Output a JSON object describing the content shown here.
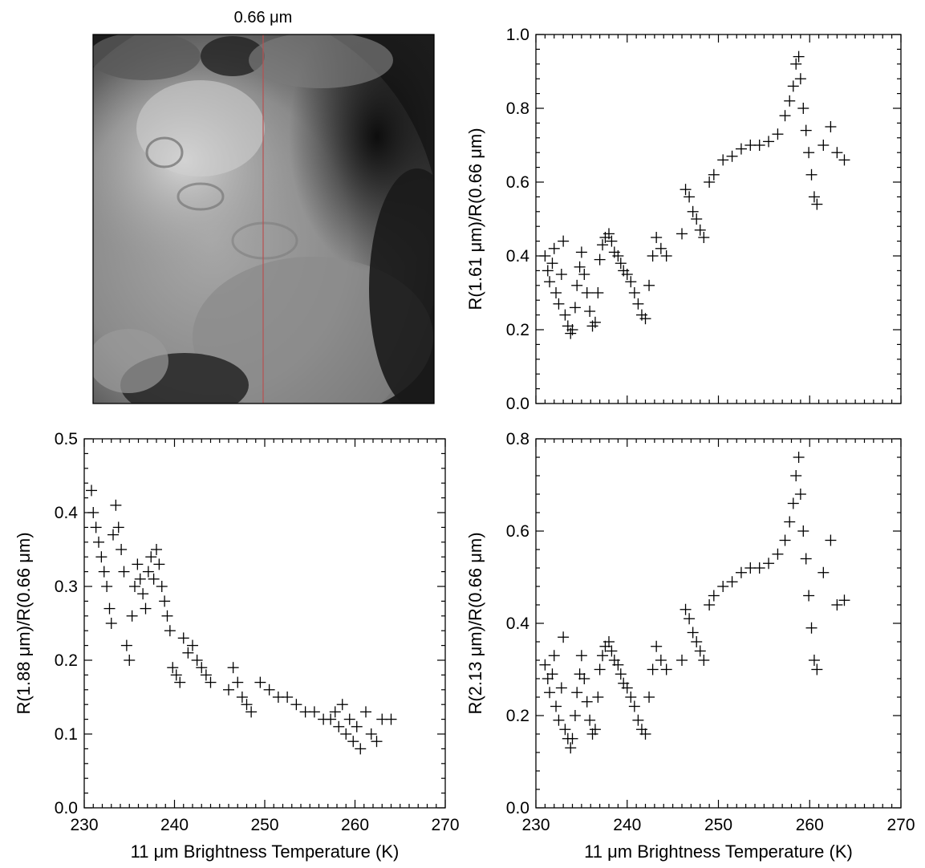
{
  "image_panel": {
    "title": "0.66 μm",
    "description_hidden": ""
  },
  "chart_data": [
    {
      "type": "scatter",
      "panel": "top-right",
      "xlabel": "",
      "ylabel": "R(1.61 μm)/R(0.66 μm)",
      "xlim": [
        230,
        270
      ],
      "ylim": [
        0.0,
        1.0
      ],
      "x_ticks": [],
      "y_ticks": [
        "0.0",
        "0.2",
        "0.4",
        "0.6",
        "0.8",
        "1.0"
      ],
      "y_tick_values": [
        0.0,
        0.2,
        0.4,
        0.6,
        0.8,
        1.0
      ],
      "marker": "+",
      "points": [
        [
          231.0,
          0.4
        ],
        [
          231.3,
          0.36
        ],
        [
          231.5,
          0.33
        ],
        [
          231.8,
          0.38
        ],
        [
          232.0,
          0.42
        ],
        [
          232.2,
          0.3
        ],
        [
          232.5,
          0.27
        ],
        [
          232.8,
          0.35
        ],
        [
          233.0,
          0.44
        ],
        [
          233.2,
          0.24
        ],
        [
          233.5,
          0.21
        ],
        [
          233.8,
          0.19
        ],
        [
          234.0,
          0.2
        ],
        [
          234.3,
          0.26
        ],
        [
          234.5,
          0.32
        ],
        [
          234.8,
          0.37
        ],
        [
          235.0,
          0.41
        ],
        [
          235.3,
          0.35
        ],
        [
          235.6,
          0.3
        ],
        [
          235.9,
          0.25
        ],
        [
          236.2,
          0.21
        ],
        [
          236.5,
          0.22
        ],
        [
          236.8,
          0.3
        ],
        [
          237.0,
          0.39
        ],
        [
          237.3,
          0.43
        ],
        [
          237.6,
          0.45
        ],
        [
          238.0,
          0.46
        ],
        [
          238.3,
          0.44
        ],
        [
          238.6,
          0.41
        ],
        [
          239.0,
          0.4
        ],
        [
          239.3,
          0.38
        ],
        [
          239.6,
          0.36
        ],
        [
          240.0,
          0.35
        ],
        [
          240.4,
          0.33
        ],
        [
          240.8,
          0.3
        ],
        [
          241.2,
          0.27
        ],
        [
          241.6,
          0.24
        ],
        [
          242.0,
          0.23
        ],
        [
          242.4,
          0.32
        ],
        [
          242.8,
          0.4
        ],
        [
          243.2,
          0.45
        ],
        [
          243.7,
          0.42
        ],
        [
          244.3,
          0.4
        ],
        [
          246.0,
          0.46
        ],
        [
          246.4,
          0.58
        ],
        [
          246.8,
          0.56
        ],
        [
          247.2,
          0.52
        ],
        [
          247.6,
          0.5
        ],
        [
          248.0,
          0.47
        ],
        [
          248.4,
          0.45
        ],
        [
          249.0,
          0.6
        ],
        [
          249.5,
          0.62
        ],
        [
          250.5,
          0.66
        ],
        [
          251.5,
          0.67
        ],
        [
          252.5,
          0.69
        ],
        [
          253.5,
          0.7
        ],
        [
          254.5,
          0.7
        ],
        [
          255.5,
          0.71
        ],
        [
          256.5,
          0.73
        ],
        [
          257.3,
          0.78
        ],
        [
          257.8,
          0.82
        ],
        [
          258.2,
          0.86
        ],
        [
          258.5,
          0.92
        ],
        [
          258.8,
          0.94
        ],
        [
          259.0,
          0.88
        ],
        [
          259.3,
          0.8
        ],
        [
          259.6,
          0.74
        ],
        [
          259.9,
          0.68
        ],
        [
          260.2,
          0.62
        ],
        [
          260.5,
          0.56
        ],
        [
          260.8,
          0.54
        ],
        [
          261.5,
          0.7
        ],
        [
          262.3,
          0.75
        ],
        [
          263.0,
          0.68
        ],
        [
          263.8,
          0.66
        ]
      ]
    },
    {
      "type": "scatter",
      "panel": "bottom-left",
      "xlabel": "11 μm Brightness Temperature (K)",
      "ylabel": "R(1.88 μm)/R(0.66 μm)",
      "xlim": [
        230,
        270
      ],
      "ylim": [
        0.0,
        0.5
      ],
      "x_ticks": [
        "230",
        "240",
        "250",
        "260",
        "270"
      ],
      "x_tick_values": [
        230,
        240,
        250,
        260,
        270
      ],
      "y_ticks": [
        "0.0",
        "0.1",
        "0.2",
        "0.3",
        "0.4",
        "0.5"
      ],
      "y_tick_values": [
        0.0,
        0.1,
        0.2,
        0.3,
        0.4,
        0.5
      ],
      "marker": "+",
      "points": [
        [
          230.8,
          0.43
        ],
        [
          231.0,
          0.4
        ],
        [
          231.3,
          0.38
        ],
        [
          231.6,
          0.36
        ],
        [
          231.9,
          0.34
        ],
        [
          232.2,
          0.32
        ],
        [
          232.5,
          0.3
        ],
        [
          232.8,
          0.27
        ],
        [
          233.0,
          0.25
        ],
        [
          233.2,
          0.37
        ],
        [
          233.5,
          0.41
        ],
        [
          233.8,
          0.38
        ],
        [
          234.1,
          0.35
        ],
        [
          234.4,
          0.32
        ],
        [
          234.7,
          0.22
        ],
        [
          235.0,
          0.2
        ],
        [
          235.3,
          0.26
        ],
        [
          235.6,
          0.3
        ],
        [
          235.9,
          0.33
        ],
        [
          236.2,
          0.31
        ],
        [
          236.5,
          0.29
        ],
        [
          236.8,
          0.27
        ],
        [
          237.1,
          0.32
        ],
        [
          237.4,
          0.34
        ],
        [
          237.7,
          0.31
        ],
        [
          238.0,
          0.35
        ],
        [
          238.3,
          0.33
        ],
        [
          238.6,
          0.3
        ],
        [
          238.9,
          0.28
        ],
        [
          239.2,
          0.26
        ],
        [
          239.5,
          0.24
        ],
        [
          239.8,
          0.19
        ],
        [
          240.2,
          0.18
        ],
        [
          240.6,
          0.17
        ],
        [
          241.0,
          0.23
        ],
        [
          241.5,
          0.21
        ],
        [
          242.0,
          0.22
        ],
        [
          242.5,
          0.2
        ],
        [
          243.0,
          0.19
        ],
        [
          243.5,
          0.18
        ],
        [
          244.0,
          0.17
        ],
        [
          246.0,
          0.16
        ],
        [
          246.5,
          0.19
        ],
        [
          247.0,
          0.17
        ],
        [
          247.5,
          0.15
        ],
        [
          248.0,
          0.14
        ],
        [
          248.5,
          0.13
        ],
        [
          249.5,
          0.17
        ],
        [
          250.5,
          0.16
        ],
        [
          251.5,
          0.15
        ],
        [
          252.5,
          0.15
        ],
        [
          253.5,
          0.14
        ],
        [
          254.5,
          0.13
        ],
        [
          255.5,
          0.13
        ],
        [
          256.5,
          0.12
        ],
        [
          257.3,
          0.12
        ],
        [
          257.8,
          0.13
        ],
        [
          258.2,
          0.11
        ],
        [
          258.6,
          0.14
        ],
        [
          259.0,
          0.1
        ],
        [
          259.4,
          0.12
        ],
        [
          259.8,
          0.09
        ],
        [
          260.2,
          0.11
        ],
        [
          260.6,
          0.08
        ],
        [
          261.2,
          0.13
        ],
        [
          261.8,
          0.1
        ],
        [
          262.4,
          0.09
        ],
        [
          263.0,
          0.12
        ],
        [
          264.0,
          0.12
        ]
      ]
    },
    {
      "type": "scatter",
      "panel": "bottom-right",
      "xlabel": "11 μm Brightness Temperature (K)",
      "ylabel": "R(2.13 μm)/R(0.66 μm)",
      "xlim": [
        230,
        270
      ],
      "ylim": [
        0.0,
        0.8
      ],
      "x_ticks": [
        "230",
        "240",
        "250",
        "260",
        "270"
      ],
      "x_tick_values": [
        230,
        240,
        250,
        260,
        270
      ],
      "y_ticks": [
        "0.0",
        "0.2",
        "0.4",
        "0.6",
        "0.8"
      ],
      "y_tick_values": [
        0.0,
        0.2,
        0.4,
        0.6,
        0.8
      ],
      "marker": "+",
      "points": [
        [
          231.0,
          0.31
        ],
        [
          231.3,
          0.28
        ],
        [
          231.5,
          0.25
        ],
        [
          231.8,
          0.29
        ],
        [
          232.0,
          0.33
        ],
        [
          232.2,
          0.22
        ],
        [
          232.5,
          0.19
        ],
        [
          232.8,
          0.26
        ],
        [
          233.0,
          0.37
        ],
        [
          233.2,
          0.17
        ],
        [
          233.5,
          0.15
        ],
        [
          233.8,
          0.13
        ],
        [
          234.0,
          0.15
        ],
        [
          234.3,
          0.2
        ],
        [
          234.5,
          0.25
        ],
        [
          234.8,
          0.29
        ],
        [
          235.0,
          0.33
        ],
        [
          235.3,
          0.28
        ],
        [
          235.6,
          0.23
        ],
        [
          235.9,
          0.19
        ],
        [
          236.2,
          0.16
        ],
        [
          236.5,
          0.17
        ],
        [
          236.8,
          0.24
        ],
        [
          237.0,
          0.3
        ],
        [
          237.3,
          0.33
        ],
        [
          237.6,
          0.35
        ],
        [
          238.0,
          0.36
        ],
        [
          238.3,
          0.34
        ],
        [
          238.6,
          0.32
        ],
        [
          239.0,
          0.31
        ],
        [
          239.3,
          0.29
        ],
        [
          239.6,
          0.27
        ],
        [
          240.0,
          0.26
        ],
        [
          240.4,
          0.24
        ],
        [
          240.8,
          0.22
        ],
        [
          241.2,
          0.19
        ],
        [
          241.6,
          0.17
        ],
        [
          242.0,
          0.16
        ],
        [
          242.4,
          0.24
        ],
        [
          242.8,
          0.3
        ],
        [
          243.2,
          0.35
        ],
        [
          243.7,
          0.32
        ],
        [
          244.3,
          0.3
        ],
        [
          246.0,
          0.32
        ],
        [
          246.4,
          0.43
        ],
        [
          246.8,
          0.41
        ],
        [
          247.2,
          0.38
        ],
        [
          247.6,
          0.36
        ],
        [
          248.0,
          0.34
        ],
        [
          248.4,
          0.32
        ],
        [
          249.0,
          0.44
        ],
        [
          249.5,
          0.46
        ],
        [
          250.5,
          0.48
        ],
        [
          251.5,
          0.49
        ],
        [
          252.5,
          0.51
        ],
        [
          253.5,
          0.52
        ],
        [
          254.5,
          0.52
        ],
        [
          255.5,
          0.53
        ],
        [
          256.5,
          0.55
        ],
        [
          257.3,
          0.58
        ],
        [
          257.8,
          0.62
        ],
        [
          258.2,
          0.66
        ],
        [
          258.5,
          0.72
        ],
        [
          258.8,
          0.76
        ],
        [
          259.0,
          0.68
        ],
        [
          259.3,
          0.6
        ],
        [
          259.6,
          0.54
        ],
        [
          259.9,
          0.46
        ],
        [
          260.2,
          0.39
        ],
        [
          260.5,
          0.32
        ],
        [
          260.8,
          0.3
        ],
        [
          261.5,
          0.51
        ],
        [
          262.3,
          0.58
        ],
        [
          263.0,
          0.44
        ],
        [
          263.8,
          0.45
        ]
      ]
    }
  ]
}
